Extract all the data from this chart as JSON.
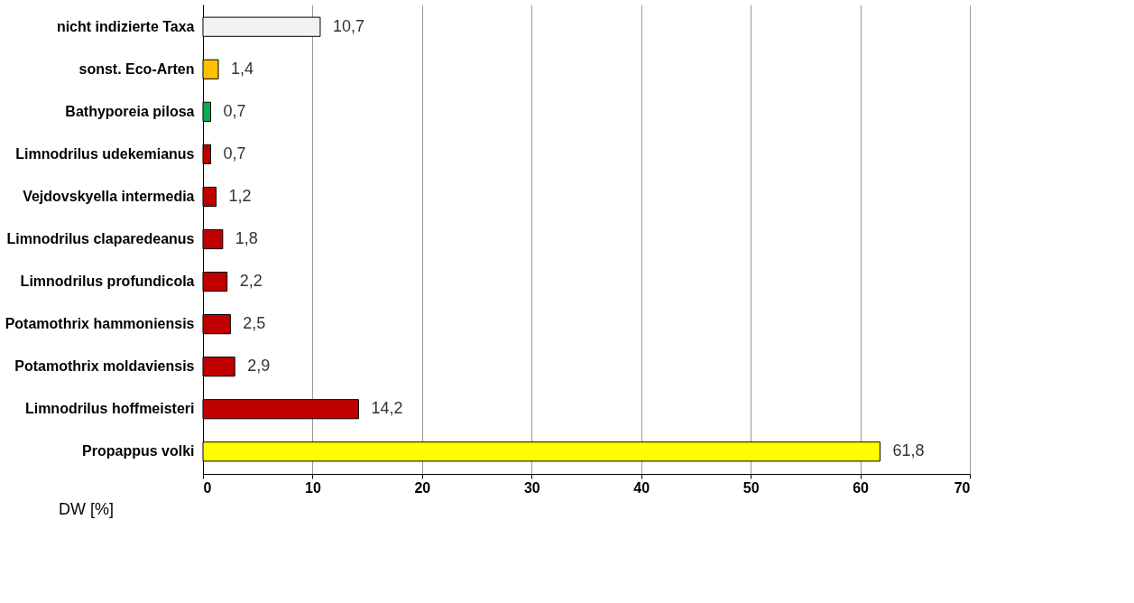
{
  "chart_data": {
    "type": "bar",
    "orientation": "horizontal",
    "xlabel": "DW [%]",
    "categories": [
      "nicht indizierte Taxa",
      "sonst. Eco-Arten",
      "Bathyporeia pilosa",
      "Limnodrilus udekemianus",
      "Vejdovskyella intermedia",
      "Limnodrilus claparedeanus",
      "Limnodrilus profundicola",
      "Potamothrix hammoniensis",
      "Potamothrix moldaviensis",
      "Limnodrilus hoffmeisteri",
      "Propappus volki"
    ],
    "values": [
      10.7,
      1.4,
      0.7,
      0.7,
      1.2,
      1.8,
      2.2,
      2.5,
      2.9,
      14.2,
      61.8
    ],
    "value_labels": [
      "10,7",
      "1,4",
      "0,7",
      "0,7",
      "1,2",
      "1,8",
      "2,2",
      "2,5",
      "2,9",
      "14,2",
      "61,8"
    ],
    "colors": [
      "#f2f2f2",
      "#ffc000",
      "#00b050",
      "#c00000",
      "#c00000",
      "#c00000",
      "#c00000",
      "#c00000",
      "#c00000",
      "#c00000",
      "#ffff00"
    ],
    "xlim": [
      0,
      70
    ],
    "xticks": [
      0,
      10,
      20,
      30,
      40,
      50,
      60,
      70
    ],
    "grid": "x"
  }
}
